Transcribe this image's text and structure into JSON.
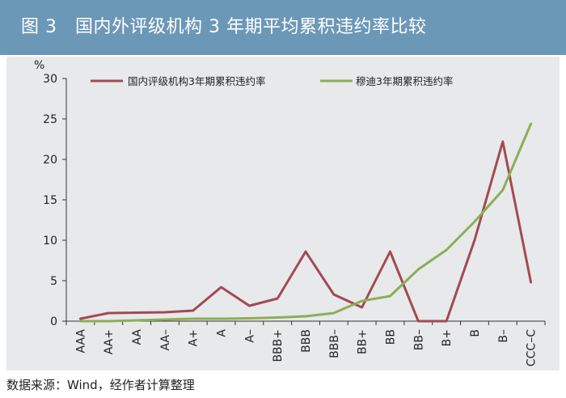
{
  "header": {
    "title": "图 3　国内外评级机构 3 年期平均累积违约率比较"
  },
  "chart_data": {
    "type": "line",
    "title": "",
    "ylabel": "%",
    "ylim": [
      0,
      30
    ],
    "yticks": [
      0,
      5,
      10,
      15,
      20,
      25,
      30
    ],
    "grid": false,
    "legend_position": "top",
    "categories": [
      "AAA",
      "AA+",
      "AA",
      "AA–",
      "A+",
      "A",
      "A–",
      "BBB+",
      "BBB",
      "BBB–",
      "BB+",
      "BB",
      "BB–",
      "B+",
      "B",
      "B–",
      "CCC–C"
    ],
    "series": [
      {
        "name": "国内评级机构3年期累积违约率",
        "color": "#a24a52",
        "values": [
          0.3,
          1.0,
          1.05,
          1.1,
          1.3,
          4.2,
          1.9,
          2.8,
          8.6,
          3.3,
          1.7,
          8.6,
          0.0,
          0.0,
          10.0,
          22.2,
          4.8
        ]
      },
      {
        "name": "穆迪3年期累积违约率",
        "color": "#8dae55",
        "values": [
          0.0,
          0.0,
          0.1,
          0.2,
          0.3,
          0.3,
          0.35,
          0.45,
          0.6,
          1.0,
          2.5,
          3.1,
          6.4,
          8.8,
          12.3,
          16.2,
          24.4
        ]
      }
    ]
  },
  "footer": {
    "source": "数据来源：Wind，经作者计算整理"
  }
}
